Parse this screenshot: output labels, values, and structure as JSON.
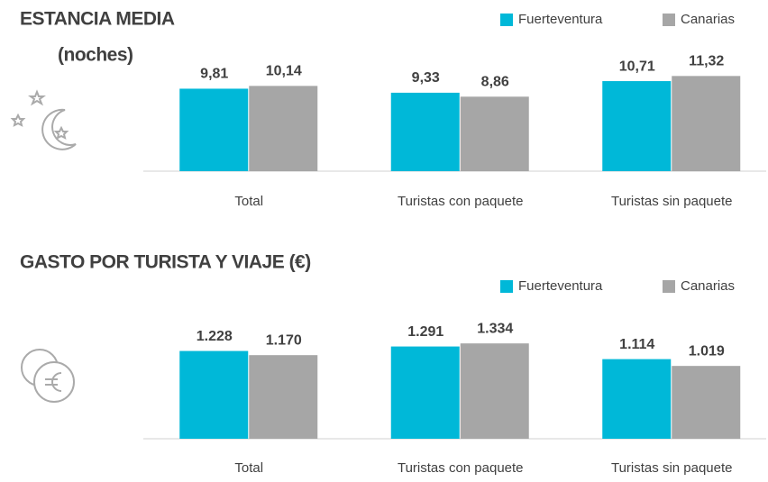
{
  "chart_data": [
    {
      "type": "bar",
      "title": "ESTANCIA MEDIA",
      "subtitle": "(noches)",
      "categories": [
        "Total",
        "Turistas con paquete",
        "Turistas sin paquete"
      ],
      "series": [
        {
          "name": "Fuerteventura",
          "color": "#00b8d8",
          "values": [
            9.81,
            9.33,
            10.71
          ],
          "value_labels": [
            "9,81",
            "9,33",
            "10,71"
          ]
        },
        {
          "name": "Canarias",
          "color": "#a6a6a6",
          "values": [
            10.14,
            8.86,
            11.32
          ],
          "value_labels": [
            "10,14",
            "8,86",
            "11,32"
          ]
        }
      ],
      "ylim": [
        0,
        12
      ]
    },
    {
      "type": "bar",
      "title": "GASTO POR TURISTA Y VIAJE (€)",
      "categories": [
        "Total",
        "Turistas con paquete",
        "Turistas sin paquete"
      ],
      "series": [
        {
          "name": "Fuerteventura",
          "color": "#00b8d8",
          "values": [
            1228,
            1291,
            1114
          ],
          "value_labels": [
            "1.228",
            "1.291",
            "1.114"
          ]
        },
        {
          "name": "Canarias",
          "color": "#a6a6a6",
          "values": [
            1170,
            1334,
            1019
          ],
          "value_labels": [
            "1.170",
            "1.334",
            "1.019"
          ]
        }
      ],
      "ylim": [
        0,
        1500
      ]
    }
  ]
}
